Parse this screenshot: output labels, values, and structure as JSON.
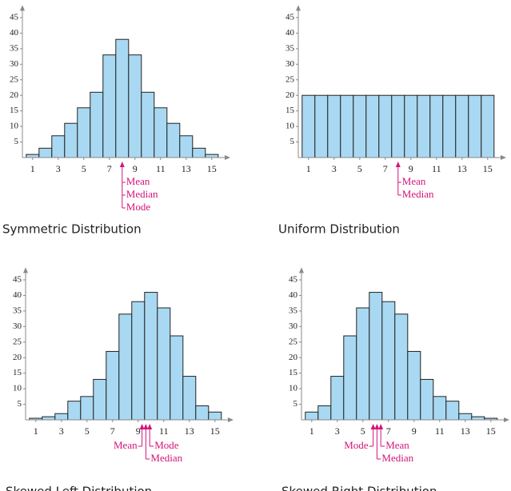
{
  "chart_data": [
    {
      "type": "bar",
      "title": "Symmetric Distribution",
      "color": "#a9d9f2",
      "x": [
        1,
        2,
        3,
        4,
        5,
        6,
        7,
        8,
        9,
        10,
        11,
        12,
        13,
        14,
        15
      ],
      "values": [
        1,
        3,
        7,
        11,
        16,
        21,
        33,
        38,
        33,
        21,
        16,
        11,
        7,
        3,
        1
      ],
      "xlim": [
        0.2,
        16.2
      ],
      "xticks": [
        1,
        3,
        5,
        7,
        9,
        11,
        13,
        15
      ],
      "ylim": [
        0,
        48
      ],
      "yticks": [
        5,
        10,
        15,
        20,
        25,
        30,
        35,
        40,
        45
      ],
      "markers": [
        {
          "label": "Mean",
          "x": 8
        },
        {
          "label": "Median",
          "x": 8
        },
        {
          "label": "Mode",
          "x": 8
        }
      ]
    },
    {
      "type": "bar",
      "title": "Uniform Distribution",
      "color": "#a9d9f2",
      "x": [
        1,
        2,
        3,
        4,
        5,
        6,
        7,
        8,
        9,
        10,
        11,
        12,
        13,
        14,
        15
      ],
      "values": [
        20,
        20,
        20,
        20,
        20,
        20,
        20,
        20,
        20,
        20,
        20,
        20,
        20,
        20,
        20
      ],
      "xlim": [
        0.2,
        16.2
      ],
      "xticks": [
        1,
        3,
        5,
        7,
        9,
        11,
        13,
        15
      ],
      "ylim": [
        0,
        48
      ],
      "yticks": [
        5,
        10,
        15,
        20,
        25,
        30,
        35,
        40,
        45
      ],
      "markers": [
        {
          "label": "Mean",
          "x": 8
        },
        {
          "label": "Median",
          "x": 8
        }
      ]
    },
    {
      "type": "bar",
      "title": "Skewed Left Distribution",
      "color": "#a9d9f2",
      "x": [
        1,
        2,
        3,
        4,
        5,
        6,
        7,
        8,
        9,
        10,
        11,
        12,
        13,
        14,
        15
      ],
      "values": [
        0.5,
        1,
        2,
        6,
        7.5,
        13,
        22,
        34,
        38,
        41,
        36,
        27,
        14,
        4.5,
        2.5
      ],
      "xlim": [
        0.2,
        16.2
      ],
      "xticks": [
        1,
        3,
        5,
        7,
        9,
        11,
        13,
        15
      ],
      "ylim": [
        0,
        48
      ],
      "yticks": [
        5,
        10,
        15,
        20,
        25,
        30,
        35,
        40,
        45
      ],
      "markers": [
        {
          "label": "Mean",
          "x": 9.3
        },
        {
          "label": "Median",
          "x": 9.6
        },
        {
          "label": "Mode",
          "x": 9.9
        }
      ]
    },
    {
      "type": "bar",
      "title": "Skewed Right Distribution",
      "color": "#a9d9f2",
      "x": [
        1,
        2,
        3,
        4,
        5,
        6,
        7,
        8,
        9,
        10,
        11,
        12,
        13,
        14,
        15
      ],
      "values": [
        2.5,
        4.5,
        14,
        27,
        36,
        41,
        38,
        34,
        22,
        13,
        7.5,
        6,
        2,
        1,
        0.5
      ],
      "xlim": [
        0.2,
        16.2
      ],
      "xticks": [
        1,
        3,
        5,
        7,
        9,
        11,
        13,
        15
      ],
      "ylim": [
        0,
        48
      ],
      "yticks": [
        5,
        10,
        15,
        20,
        25,
        30,
        35,
        40,
        45
      ],
      "markers": [
        {
          "label": "Mode",
          "x": 5.8
        },
        {
          "label": "Median",
          "x": 6.1
        },
        {
          "label": "Mean",
          "x": 6.4
        }
      ]
    }
  ]
}
